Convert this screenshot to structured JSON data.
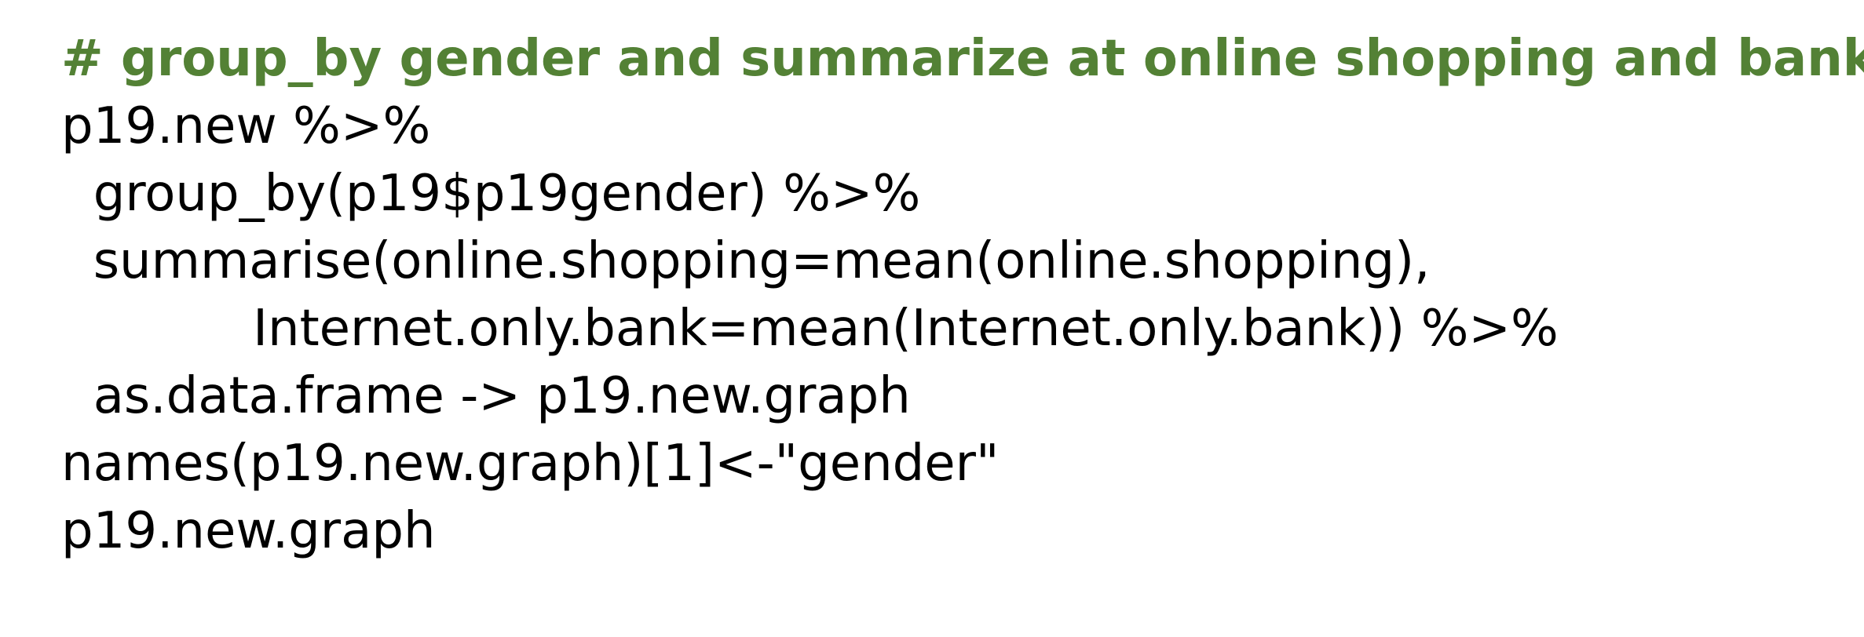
{
  "code": {
    "comment_color": "#538135",
    "text_color": "#000000",
    "lines": [
      {
        "kind": "comment",
        "text": "# group_by gender and summarize at online shopping and bank"
      },
      {
        "kind": "code",
        "text": "p19.new %>%"
      },
      {
        "kind": "code",
        "text": "  group_by(p19$p19gender) %>%"
      },
      {
        "kind": "code",
        "text": "  summarise(online.shopping=mean(online.shopping),"
      },
      {
        "kind": "code",
        "text": "            Internet.only.bank=mean(Internet.only.bank)) %>%"
      },
      {
        "kind": "code",
        "text": "  as.data.frame -> p19.new.graph"
      },
      {
        "kind": "code",
        "text": "names(p19.new.graph)[1]<-\"gender\""
      },
      {
        "kind": "code",
        "text": "p19.new.graph"
      }
    ]
  }
}
